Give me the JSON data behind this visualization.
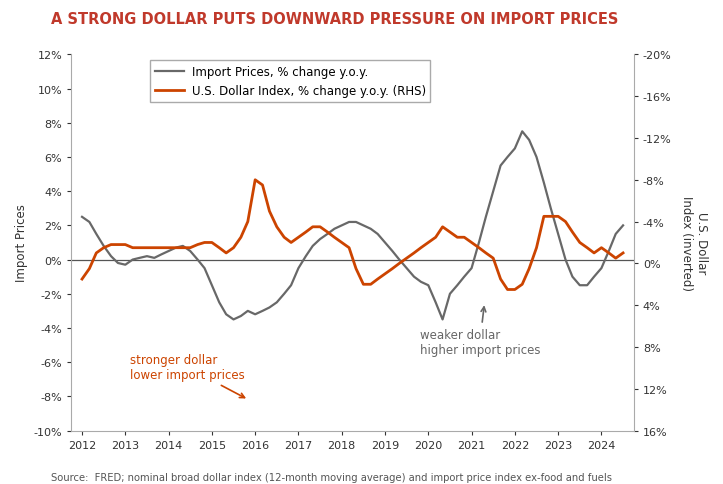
{
  "title": "A STRONG DOLLAR PUTS DOWNWARD PRESSURE ON IMPORT PRICES",
  "title_color": "#c0392b",
  "ylabel_left": "Import Prices",
  "ylabel_right": "U.S. Dollar\nIndex (inverted)",
  "source": "Source:  FRED; nominal broad dollar index (12-month moving average) and import price index ex-food and fuels",
  "left_ylim": [
    -10,
    12
  ],
  "right_ylim": [
    16,
    -20
  ],
  "left_yticks": [
    -10,
    -8,
    -6,
    -4,
    -2,
    0,
    2,
    4,
    6,
    8,
    10,
    12
  ],
  "right_yticks": [
    16,
    12,
    8,
    4,
    0,
    -4,
    -8,
    -12,
    -16,
    -20
  ],
  "legend_labels": [
    "Import Prices, % change y.o.y.",
    "U.S. Dollar Index, % change y.o.y. (RHS)"
  ],
  "import_color": "#686868",
  "dollar_color": "#cc4400",
  "annotation1_color": "#cc4400",
  "annotation2_color": "#666666",
  "import_prices": {
    "dates": [
      2012.0,
      2012.17,
      2012.33,
      2012.5,
      2012.67,
      2012.83,
      2013.0,
      2013.17,
      2013.33,
      2013.5,
      2013.67,
      2013.83,
      2014.0,
      2014.17,
      2014.33,
      2014.5,
      2014.67,
      2014.83,
      2015.0,
      2015.17,
      2015.33,
      2015.5,
      2015.67,
      2015.83,
      2016.0,
      2016.17,
      2016.33,
      2016.5,
      2016.67,
      2016.83,
      2017.0,
      2017.17,
      2017.33,
      2017.5,
      2017.67,
      2017.83,
      2018.0,
      2018.17,
      2018.33,
      2018.5,
      2018.67,
      2018.83,
      2019.0,
      2019.17,
      2019.33,
      2019.5,
      2019.67,
      2019.83,
      2020.0,
      2020.17,
      2020.33,
      2020.5,
      2020.67,
      2020.83,
      2021.0,
      2021.17,
      2021.33,
      2021.5,
      2021.67,
      2021.83,
      2022.0,
      2022.17,
      2022.33,
      2022.5,
      2022.67,
      2022.83,
      2023.0,
      2023.17,
      2023.33,
      2023.5,
      2023.67,
      2023.83,
      2024.0,
      2024.17,
      2024.33,
      2024.5
    ],
    "values": [
      2.5,
      2.2,
      1.5,
      0.8,
      0.2,
      -0.2,
      -0.3,
      0.0,
      0.1,
      0.2,
      0.1,
      0.3,
      0.5,
      0.7,
      0.8,
      0.5,
      0.0,
      -0.5,
      -1.5,
      -2.5,
      -3.2,
      -3.5,
      -3.3,
      -3.0,
      -3.2,
      -3.0,
      -2.8,
      -2.5,
      -2.0,
      -1.5,
      -0.5,
      0.2,
      0.8,
      1.2,
      1.5,
      1.8,
      2.0,
      2.2,
      2.2,
      2.0,
      1.8,
      1.5,
      1.0,
      0.5,
      0.0,
      -0.5,
      -1.0,
      -1.3,
      -1.5,
      -2.5,
      -3.5,
      -2.0,
      -1.5,
      -1.0,
      -0.5,
      1.0,
      2.5,
      4.0,
      5.5,
      6.0,
      6.5,
      7.5,
      7.0,
      6.0,
      4.5,
      3.0,
      1.5,
      0.0,
      -1.0,
      -1.5,
      -1.5,
      -1.0,
      -0.5,
      0.5,
      1.5,
      2.0
    ]
  },
  "dollar_index": {
    "dates": [
      2012.0,
      2012.17,
      2012.33,
      2012.5,
      2012.67,
      2012.83,
      2013.0,
      2013.17,
      2013.33,
      2013.5,
      2013.67,
      2013.83,
      2014.0,
      2014.17,
      2014.33,
      2014.5,
      2014.67,
      2014.83,
      2015.0,
      2015.17,
      2015.33,
      2015.5,
      2015.67,
      2015.83,
      2016.0,
      2016.17,
      2016.33,
      2016.5,
      2016.67,
      2016.83,
      2017.0,
      2017.17,
      2017.33,
      2017.5,
      2017.67,
      2017.83,
      2018.0,
      2018.17,
      2018.33,
      2018.5,
      2018.67,
      2018.83,
      2019.0,
      2019.17,
      2019.33,
      2019.5,
      2019.67,
      2019.83,
      2020.0,
      2020.17,
      2020.33,
      2020.5,
      2020.67,
      2020.83,
      2021.0,
      2021.17,
      2021.33,
      2021.5,
      2021.67,
      2021.83,
      2022.0,
      2022.17,
      2022.33,
      2022.5,
      2022.67,
      2022.83,
      2023.0,
      2023.17,
      2023.33,
      2023.5,
      2023.67,
      2023.83,
      2024.0,
      2024.17,
      2024.33,
      2024.5
    ],
    "values": [
      1.5,
      0.5,
      -1.0,
      -1.5,
      -1.8,
      -1.8,
      -1.8,
      -1.5,
      -1.5,
      -1.5,
      -1.5,
      -1.5,
      -1.5,
      -1.5,
      -1.5,
      -1.5,
      -1.8,
      -2.0,
      -2.0,
      -1.5,
      -1.0,
      -1.5,
      -2.5,
      -4.0,
      -8.0,
      -7.5,
      -5.0,
      -3.5,
      -2.5,
      -2.0,
      -2.5,
      -3.0,
      -3.5,
      -3.5,
      -3.0,
      -2.5,
      -2.0,
      -1.5,
      0.5,
      2.0,
      2.0,
      1.5,
      1.0,
      0.5,
      0.0,
      -0.5,
      -1.0,
      -1.5,
      -2.0,
      -2.5,
      -3.5,
      -3.0,
      -2.5,
      -2.5,
      -2.0,
      -1.5,
      -1.0,
      -0.5,
      1.5,
      2.5,
      2.5,
      2.0,
      0.5,
      -1.5,
      -4.5,
      -4.5,
      -4.5,
      -4.0,
      -3.0,
      -2.0,
      -1.5,
      -1.0,
      -1.5,
      -1.0,
      -0.5,
      -1.0
    ]
  }
}
